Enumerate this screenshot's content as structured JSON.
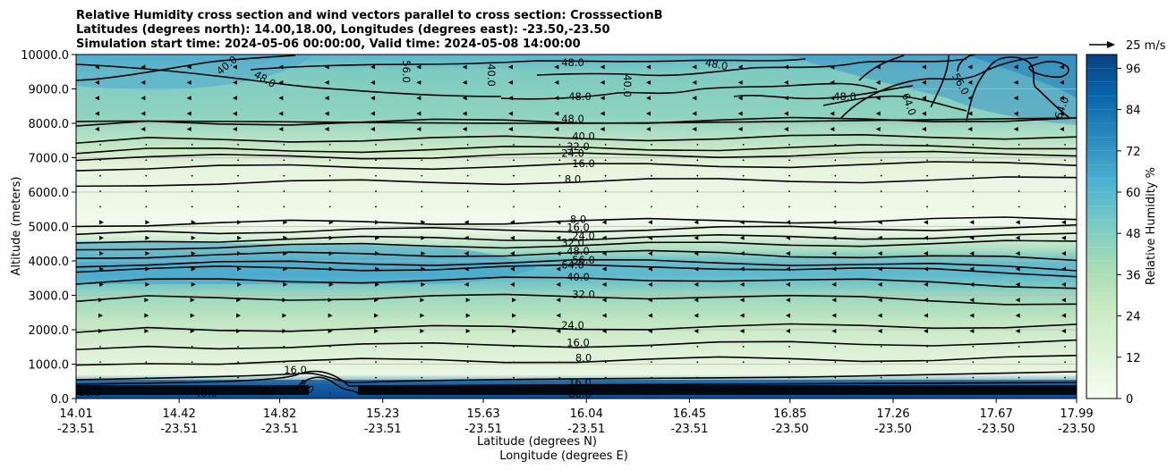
{
  "chart_data": {
    "type": "contour",
    "title_lines": [
      "Relative Humidity cross section and wind vectors parallel to cross section: CrosssectionB",
      "Latitudes (degrees north): 14.00,18.00, Longitudes (degrees east): -23.50,-23.50",
      "Simulation start time: 2024-05-06 00:00:00, Valid time: 2024-05-08 14:00:00"
    ],
    "ylabel": "Altitude (meters)",
    "xlabel_lat": "Latitude (degrees N)",
    "xlabel_lon": "Longitude (degrees E)",
    "ylim": [
      0,
      10000
    ],
    "yticks": [
      "0.0",
      "1000.0",
      "2000.0",
      "3000.0",
      "4000.0",
      "5000.0",
      "6000.0",
      "7000.0",
      "8000.0",
      "9000.0",
      "10000.0"
    ],
    "xticks": [
      {
        "lat": "14.01",
        "lon": "-23.51"
      },
      {
        "lat": "14.42",
        "lon": "-23.51"
      },
      {
        "lat": "14.82",
        "lon": "-23.51"
      },
      {
        "lat": "15.23",
        "lon": "-23.51"
      },
      {
        "lat": "15.63",
        "lon": "-23.51"
      },
      {
        "lat": "16.04",
        "lon": "-23.51"
      },
      {
        "lat": "16.45",
        "lon": "-23.51"
      },
      {
        "lat": "16.85",
        "lon": "-23.50"
      },
      {
        "lat": "17.26",
        "lon": "-23.50"
      },
      {
        "lat": "17.67",
        "lon": "-23.50"
      },
      {
        "lat": "17.99",
        "lon": "-23.50"
      }
    ],
    "xlim": [
      14.01,
      17.99
    ],
    "colorbar": {
      "label": "Relative Humidity %",
      "min": 0,
      "max": 100,
      "ticks": [
        "0",
        "12",
        "24",
        "36",
        "48",
        "60",
        "72",
        "84",
        "96"
      ],
      "colormap": "GnBu",
      "colors": [
        "#f7fcf0",
        "#e0f3db",
        "#ccebc5",
        "#a8ddb5",
        "#7bccc4",
        "#4eb3d3",
        "#2b8cbe",
        "#0868ac",
        "#084081"
      ]
    },
    "quiver_key": "25 m/s",
    "contour_levels": [
      8,
      16,
      24,
      32,
      40,
      48,
      56,
      64
    ],
    "contour_lines": [
      {
        "level": "8.0",
        "label": "8.0",
        "alt": 6250
      },
      {
        "level": "8.0",
        "label": "8.0",
        "alt": 5080
      },
      {
        "level": "16.0",
        "label": "16.0",
        "alt": 6700
      },
      {
        "level": "24.0",
        "label": "24.0",
        "alt": 7000
      },
      {
        "level": "32.0",
        "label": "32.0",
        "alt": 7200
      },
      {
        "level": "40.0",
        "label": "40.0",
        "alt": 7500
      },
      {
        "level": "48.0",
        "label": "48.0",
        "alt": 8000
      },
      {
        "level": "16.0",
        "label": "16.0",
        "alt": 4850
      },
      {
        "level": "24.0",
        "label": "24.0",
        "alt": 4600
      },
      {
        "level": "32.0",
        "label": "32.0",
        "alt": 4400
      },
      {
        "level": "48.0",
        "label": "48.0",
        "alt": 4150
      },
      {
        "level": "56.0",
        "label": "56.0",
        "alt": 3900
      },
      {
        "level": "64.0",
        "label": "64.0",
        "alt": 3750
      },
      {
        "level": "40.0",
        "label": "40.0",
        "alt": 3400
      },
      {
        "level": "32.0",
        "label": "32.0",
        "alt": 2900
      },
      {
        "level": "24.0",
        "label": "24.0",
        "alt": 2000
      },
      {
        "level": "16.0",
        "label": "16.0",
        "alt": 1500
      },
      {
        "level": "8.0",
        "label": "8.0",
        "alt": 1050
      }
    ],
    "upper_labels": [
      "48.0",
      "40.0",
      "48.0",
      "56.0",
      "48.0",
      "40.0",
      "48.0",
      "64.0",
      "56.0",
      "48.0",
      "64.0",
      "40.0"
    ],
    "surface_labels": [
      "16.0",
      "8.0",
      "16.0",
      "80.0",
      "56.0",
      "40.0",
      "16.0"
    ]
  }
}
